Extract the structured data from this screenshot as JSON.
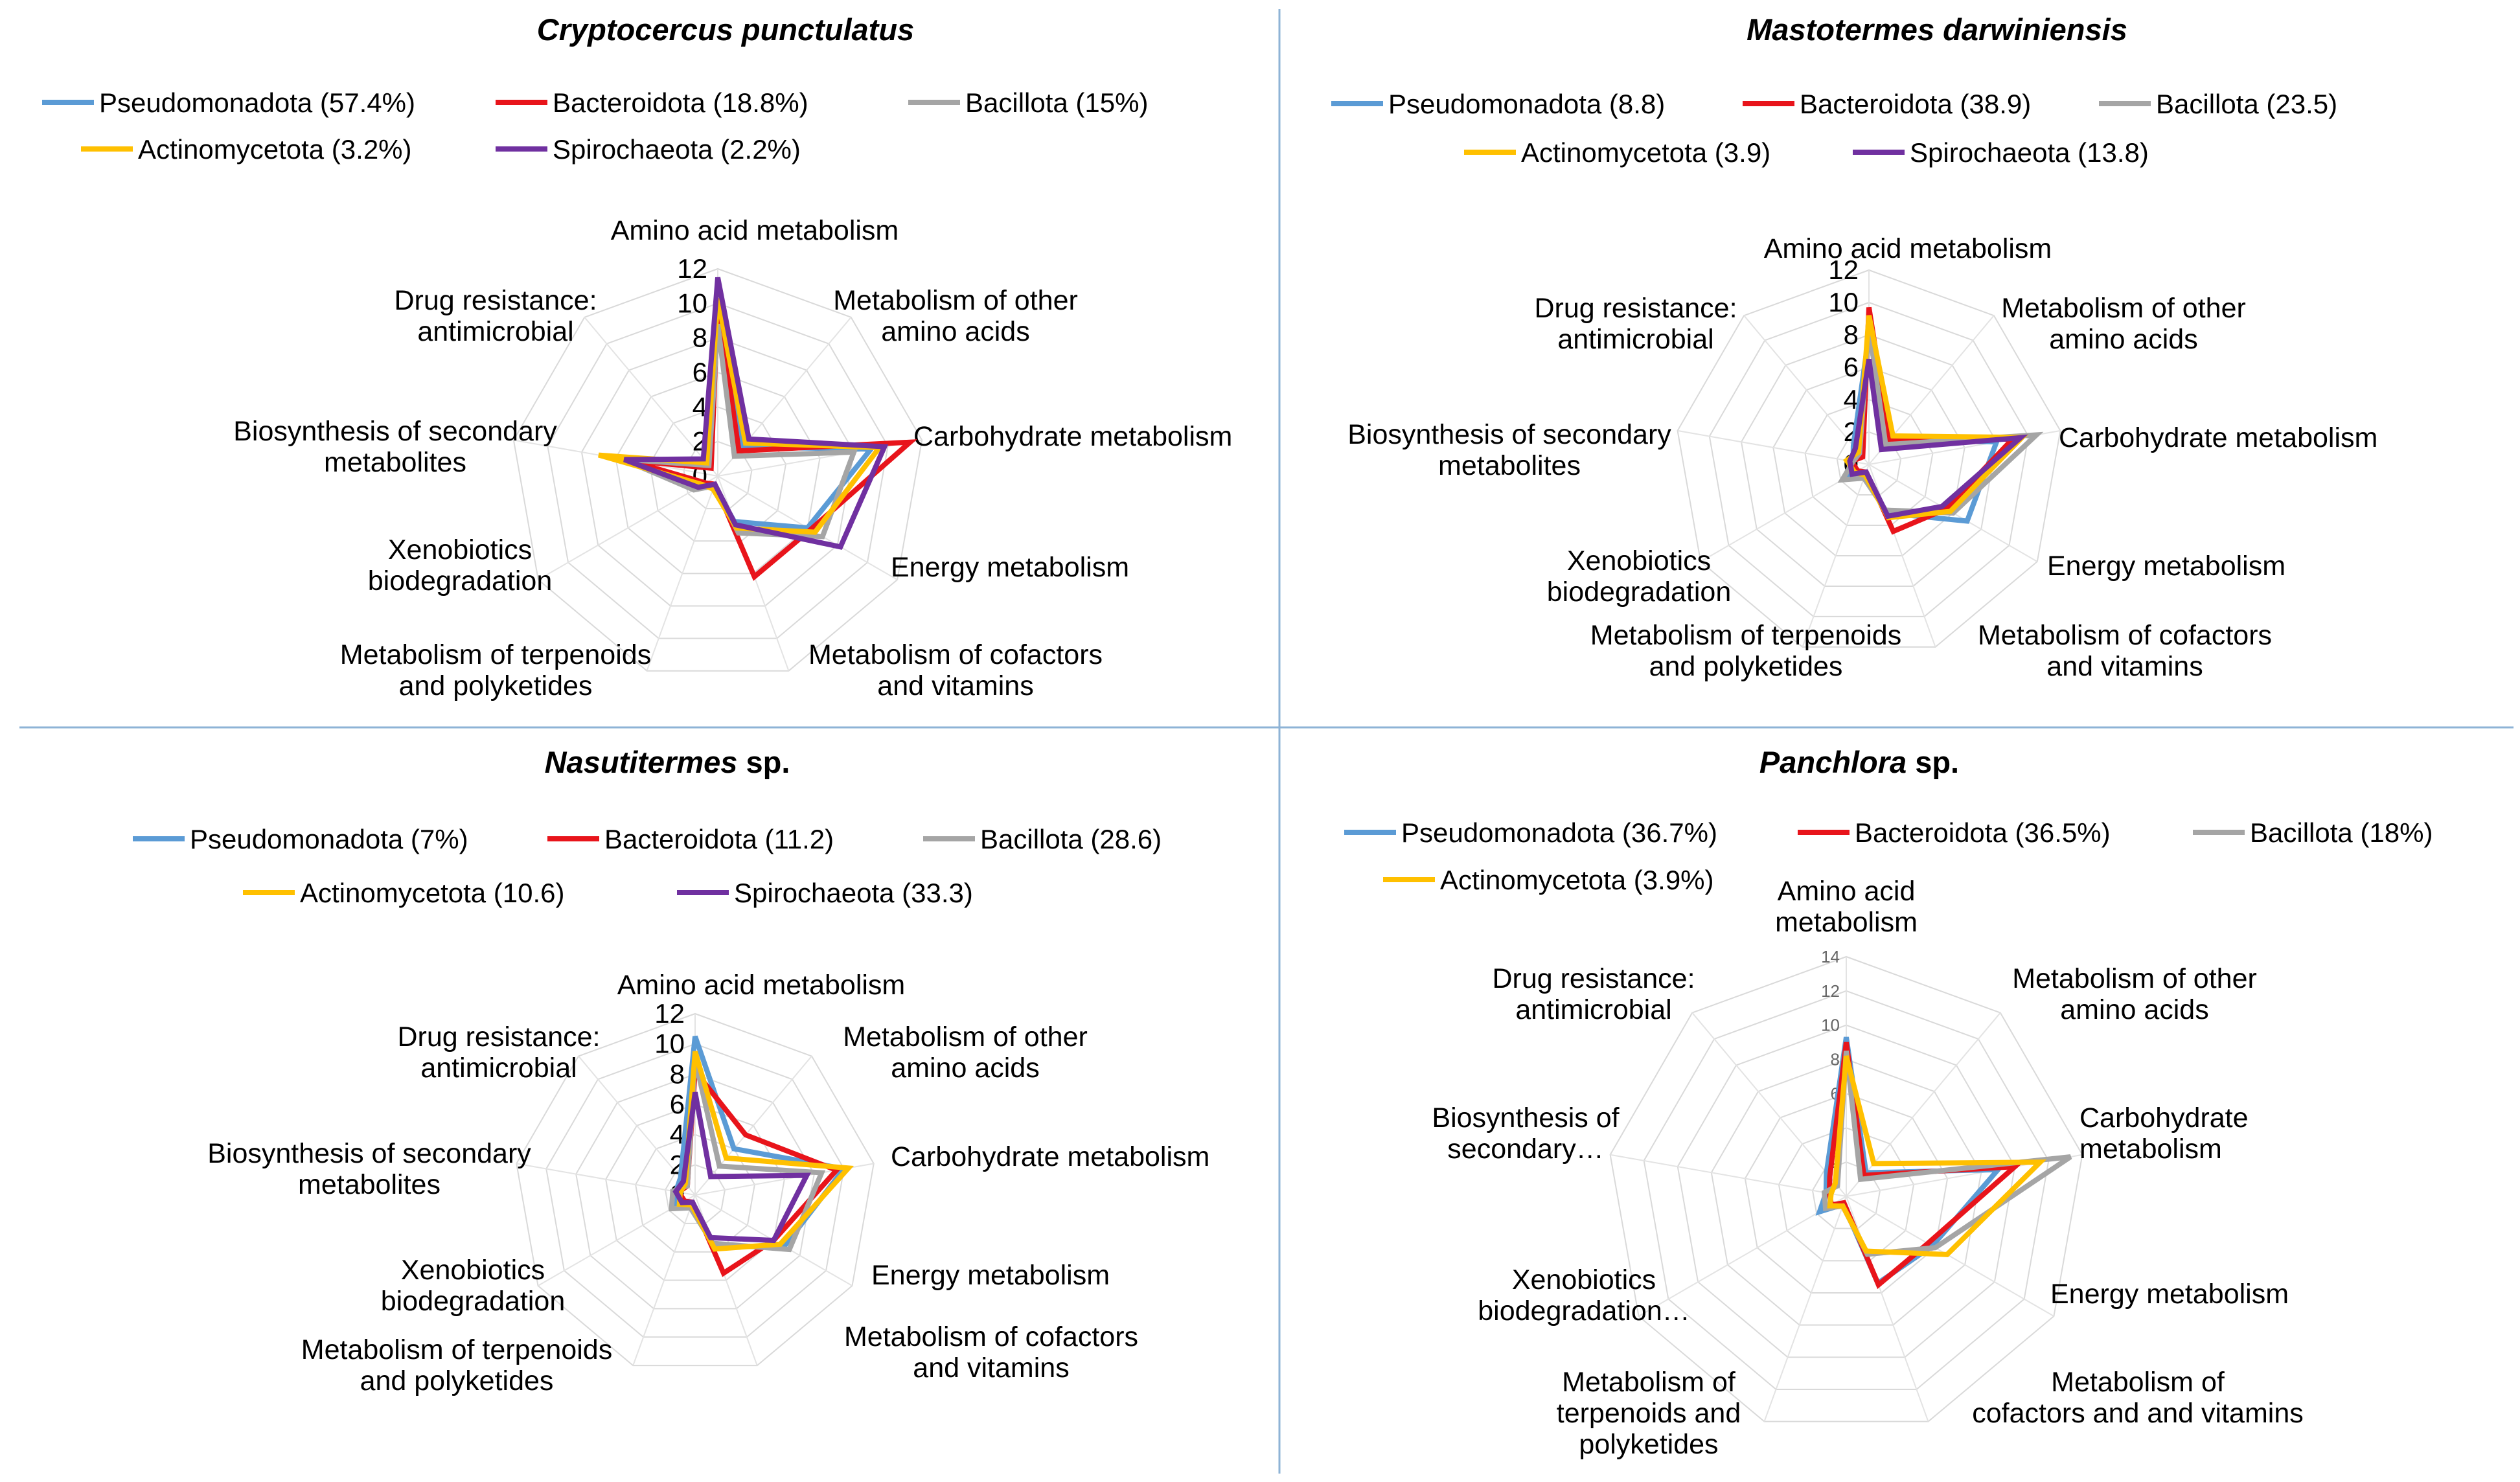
{
  "chart_data": [
    {
      "type": "radar",
      "title": "Cryptocercus punctulatus",
      "title_suffix": "",
      "title_italic_all": true,
      "axes": [
        "Amino acid metabolism",
        "Metabolism of other amino acids",
        "Carbohydrate metabolism",
        "Energy metabolism",
        "Metabolism of cofactors and vitamins",
        "Metabolism of terpenoids and polyketides",
        "Xenobiotics biodegradation",
        "Biosynthesis of secondary metabolites",
        "Drug resistance: antimicrobial"
      ],
      "axis_label_lines": [
        [
          "Amino acid metabolism"
        ],
        [
          "Metabolism of other",
          "amino acids"
        ],
        [
          "Carbohydrate metabolism"
        ],
        [
          "Energy metabolism"
        ],
        [
          "Metabolism of cofactors",
          "and vitamins"
        ],
        [
          "Metabolism of terpenoids",
          "and polyketides"
        ],
        [
          "Xenobiotics",
          "biodegradation"
        ],
        [
          "Biosynthesis of secondary",
          "metabolites"
        ],
        [
          "Drug resistance:",
          "antimicrobial"
        ]
      ],
      "rlim": [
        0,
        12
      ],
      "ticks": [
        "0",
        "2",
        "4",
        "6",
        "8",
        "10",
        "12"
      ],
      "legend_rows": [
        [
          {
            "name": "Pseudomonadota",
            "value": "(57.4%)"
          },
          {
            "name": "Bacteroidota",
            "value": "(18.8%)"
          },
          {
            "name": "Bacillota",
            "value": "(15%)"
          }
        ],
        [
          {
            "name": "Actinomycetota",
            "value": "(3.2%)"
          },
          {
            "name": "Spirochaeota",
            "value": "(2.2%)"
          }
        ]
      ],
      "series": [
        {
          "name": "Pseudomonadota",
          "color": "#5b9bd5",
          "values": [
            9.5,
            2.2,
            9.0,
            6.0,
            2.8,
            0.6,
            1.5,
            5.0,
            1.2
          ]
        },
        {
          "name": "Bacteroidota",
          "color": "#e8141b",
          "values": [
            10.0,
            1.9,
            11.3,
            6.2,
            6.2,
            0.5,
            0.8,
            5.3,
            0.6
          ]
        },
        {
          "name": "Bacillota",
          "color": "#a5a5a5",
          "values": [
            8.8,
            1.5,
            8.0,
            7.0,
            3.5,
            0.6,
            1.6,
            5.6,
            0.8
          ]
        },
        {
          "name": "Actinomycetota",
          "color": "#ffc000",
          "values": [
            10.3,
            2.5,
            9.5,
            6.5,
            3.2,
            0.8,
            1.0,
            7.0,
            1.0
          ]
        },
        {
          "name": "Spirochaeota",
          "color": "#7030a0",
          "values": [
            11.5,
            2.8,
            9.8,
            8.2,
            3.0,
            0.5,
            1.3,
            5.5,
            1.3
          ]
        }
      ]
    },
    {
      "type": "radar",
      "title": "Mastotermes darwiniensis",
      "title_suffix": "",
      "axes": [
        "Amino acid metabolism",
        "Metabolism of other amino acids",
        "Carbohydrate metabolism",
        "Energy metabolism",
        "Metabolism of cofactors and vitamins",
        "Metabolism of terpenoids and polyketides",
        "Xenobiotics biodegradation",
        "Biosynthesis of secondary metabolites",
        "Drug resistance: antimicrobial"
      ],
      "axis_label_lines": [
        [
          "Amino acid metabolism"
        ],
        [
          "Metabolism of other",
          "amino acids"
        ],
        [
          "Carbohydrate metabolism"
        ],
        [
          "Energy metabolism"
        ],
        [
          "Metabolism of cofactors",
          "and vitamins"
        ],
        [
          "Metabolism of terpenoids",
          "and polyketides"
        ],
        [
          "Xenobiotics",
          "biodegradation"
        ],
        [
          "Biosynthesis of secondary",
          "metabolites"
        ],
        [
          "Drug resistance:",
          "antimicrobial"
        ]
      ],
      "rlim": [
        0,
        12
      ],
      "ticks": [
        "0",
        "2",
        "4",
        "6",
        "8",
        "10",
        "12"
      ],
      "legend_rows": [
        [
          {
            "name": "Pseudomonadota",
            "value": "(8.8)"
          },
          {
            "name": "Bacteroidota",
            "value": "(38.9)"
          },
          {
            "name": "Bacillota",
            "value": "(23.5)"
          }
        ],
        [
          {
            "name": "Actinomycetota",
            "value": "(3.9)"
          },
          {
            "name": "Spirochaeota",
            "value": "(13.8)"
          }
        ]
      ],
      "series": [
        {
          "name": "Pseudomonadota",
          "color": "#5b9bd5",
          "values": [
            8.0,
            2.0,
            8.0,
            7.0,
            3.2,
            0.6,
            1.6,
            1.0,
            1.5
          ]
        },
        {
          "name": "Bacteroidota",
          "color": "#e8141b",
          "values": [
            9.7,
            2.0,
            9.0,
            5.5,
            4.4,
            0.5,
            0.8,
            1.1,
            0.6
          ]
        },
        {
          "name": "Bacillota",
          "color": "#a5a5a5",
          "values": [
            8.5,
            1.6,
            10.5,
            6.0,
            3.0,
            0.9,
            1.9,
            1.0,
            0.9
          ]
        },
        {
          "name": "Actinomycetota",
          "color": "#ffc000",
          "values": [
            9.2,
            2.3,
            9.6,
            5.8,
            3.5,
            0.7,
            1.0,
            1.4,
            1.0
          ]
        },
        {
          "name": "Spirochaeota",
          "color": "#7030a0",
          "values": [
            6.5,
            1.2,
            9.5,
            5.2,
            3.4,
            0.5,
            1.2,
            1.2,
            1.3
          ]
        }
      ]
    },
    {
      "type": "radar",
      "title": "Nasutitermes",
      "title_suffix": " sp.",
      "axes": [
        "Amino acid metabolism",
        "Metabolism of other amino acids",
        "Carbohydrate metabolism",
        "Energy metabolism",
        "Metabolism of cofactors and vitamins",
        "Metabolism of terpenoids and polyketides",
        "Xenobiotics biodegradation",
        "Biosynthesis of secondary metabolites",
        "Drug resistance: antimicrobial"
      ],
      "axis_label_lines": [
        [
          "Amino acid metabolism"
        ],
        [
          "Metabolism of other",
          "amino acids"
        ],
        [
          "Carbohydrate metabolism"
        ],
        [
          "Energy metabolism"
        ],
        [
          "Metabolism of cofactors",
          "and vitamins"
        ],
        [
          "Metabolism of terpenoids",
          "and polyketides"
        ],
        [
          "Xenobiotics",
          "biodegradation"
        ],
        [
          "Biosynthesis of secondary",
          "metabolites"
        ],
        [
          "Drug resistance:",
          "antimicrobial"
        ]
      ],
      "rlim": [
        0,
        12
      ],
      "ticks": [
        "0",
        "2",
        "4",
        "6",
        "8",
        "10",
        "12"
      ],
      "legend_rows": [
        [
          {
            "name": "Pseudomonadota",
            "value": "(7%)"
          },
          {
            "name": "Bacteroidota",
            "value": "(11.2)"
          },
          {
            "name": "Bacillota",
            "value": "(28.6)"
          }
        ],
        [
          {
            "name": "Actinomycetota",
            "value": "(10.6)"
          },
          {
            "name": "Spirochaeota",
            "value": "(33.3)"
          }
        ]
      ],
      "series": [
        {
          "name": "Pseudomonadota",
          "color": "#5b9bd5",
          "values": [
            10.5,
            4.0,
            10.0,
            6.8,
            3.6,
            0.8,
            1.4,
            1.3,
            1.5
          ]
        },
        {
          "name": "Bacteroidota",
          "color": "#e8141b",
          "values": [
            8.2,
            5.2,
            9.5,
            6.0,
            5.5,
            0.5,
            0.8,
            1.1,
            0.8
          ]
        },
        {
          "name": "Bacillota",
          "color": "#a5a5a5",
          "values": [
            9.0,
            2.5,
            8.5,
            7.2,
            3.4,
            0.9,
            1.8,
            1.5,
            0.8
          ]
        },
        {
          "name": "Actinomycetota",
          "color": "#ffc000",
          "values": [
            9.5,
            3.2,
            10.3,
            6.5,
            3.8,
            0.7,
            1.2,
            1.0,
            1.0
          ]
        },
        {
          "name": "Spirochaeota",
          "color": "#7030a0",
          "values": [
            6.8,
            1.6,
            7.5,
            6.0,
            3.0,
            0.5,
            1.0,
            1.3,
            1.2
          ]
        }
      ]
    },
    {
      "type": "radar",
      "title": "Panchlora",
      "title_suffix": " sp.",
      "axes": [
        "Amino acid metabolism",
        "Metabolism of other amino acids",
        "Carbohydrate metabolism",
        "Energy metabolism",
        "Metabolism of cofactors and vitamins",
        "Metabolism of terpenoids and polyketides",
        "Xenobiotics biodegradation",
        "Biosynthesis of secondary metabolites",
        "Drug resistance: antimicrobial"
      ],
      "axis_label_lines": [
        [
          "Amino acid",
          "metabolism"
        ],
        [
          "Metabolism of other",
          "amino acids"
        ],
        [
          "Carbohydrate",
          "metabolism"
        ],
        [
          "Energy metabolism"
        ],
        [
          "Metabolism of",
          "cofactors and and vitamins"
        ],
        [
          "Metabolism of",
          "terpenoids and",
          "polyketides"
        ],
        [
          "Xenobiotics",
          "biodegradation…"
        ],
        [
          "Biosynthesis of",
          "secondary…"
        ],
        [
          "Drug resistance:",
          "antimicrobial"
        ]
      ],
      "rlim": [
        0,
        14
      ],
      "ticks": [
        "2",
        "4",
        "6",
        "8",
        "10",
        "12",
        "14"
      ],
      "legend_rows": [
        [
          {
            "name": "Pseudomonadota",
            "value": "(36.7%)"
          },
          {
            "name": "Bacteroidota",
            "value": "(36.5%)"
          },
          {
            "name": "Bacillota",
            "value": "(18%)"
          }
        ],
        [
          {
            "name": "Actinomycetota",
            "value": "(3.9%)"
          }
        ]
      ],
      "series": [
        {
          "name": "Pseudomonadota",
          "color": "#5b9bd5",
          "values": [
            9.3,
            1.8,
            9.0,
            5.8,
            5.4,
            0.5,
            1.8,
            1.2,
            1.8
          ]
        },
        {
          "name": "Bacteroidota",
          "color": "#e8141b",
          "values": [
            9.0,
            1.6,
            10.0,
            5.5,
            5.5,
            0.4,
            1.0,
            1.0,
            1.5
          ]
        },
        {
          "name": "Bacillota",
          "color": "#a5a5a5",
          "values": [
            8.5,
            1.3,
            13.3,
            6.0,
            3.6,
            0.6,
            1.4,
            1.3,
            0.8
          ]
        },
        {
          "name": "Actinomycetota",
          "color": "#ffc000",
          "values": [
            8.2,
            2.5,
            11.5,
            6.8,
            3.4,
            0.6,
            1.1,
            0.9,
            1.0
          ]
        }
      ]
    }
  ]
}
